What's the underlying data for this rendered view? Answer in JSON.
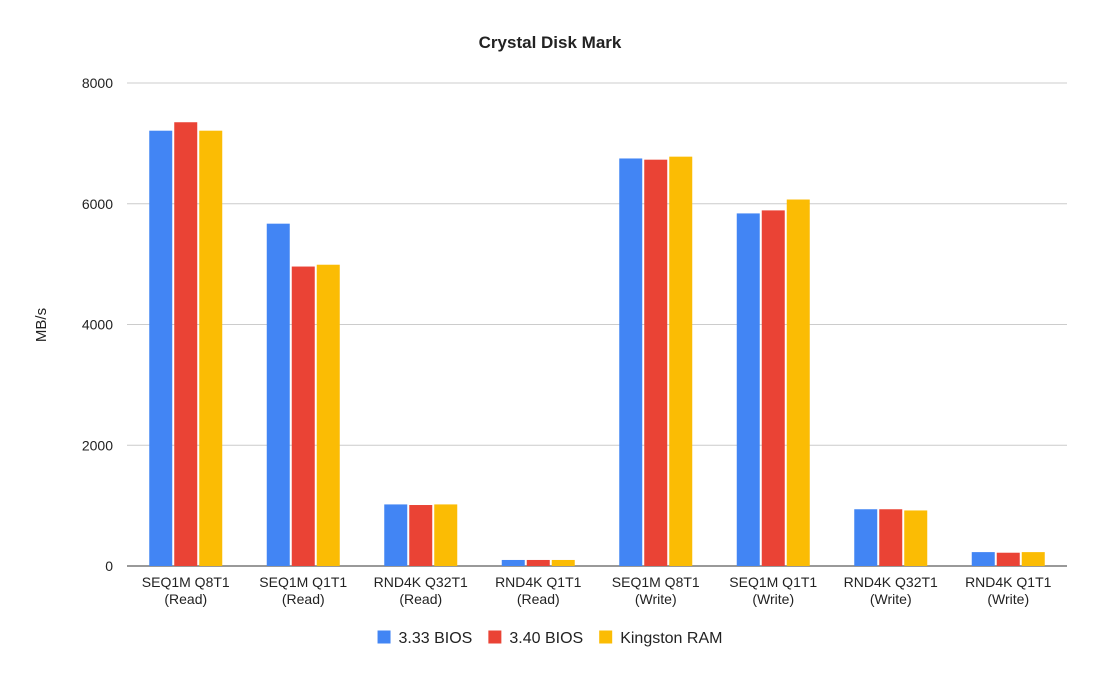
{
  "chart_data": {
    "type": "bar",
    "title": "Crystal Disk Mark",
    "xlabel": "",
    "ylabel": "MB/s",
    "ylim": [
      0,
      8000
    ],
    "yticks": [
      "0",
      "2000",
      "4000",
      "6000",
      "8000"
    ],
    "grid": true,
    "legend_position": "bottom",
    "categories": [
      [
        "SEQ1M Q8T1",
        "(Read)"
      ],
      [
        "SEQ1M Q1T1",
        "(Read)"
      ],
      [
        "RND4K Q32T1",
        "(Read)"
      ],
      [
        "RND4K Q1T1",
        "(Read)"
      ],
      [
        "SEQ1M Q8T1",
        "(Write)"
      ],
      [
        "SEQ1M Q1T1",
        "(Write)"
      ],
      [
        "RND4K Q32T1",
        "(Write)"
      ],
      [
        "RND4K Q1T1",
        "(Write)"
      ]
    ],
    "series": [
      {
        "name": "3.33 BIOS",
        "color": "#4285f4",
        "values": [
          7210,
          5670,
          1020,
          100,
          6750,
          5840,
          940,
          230
        ]
      },
      {
        "name": "3.40 BIOS",
        "color": "#ea4335",
        "values": [
          7350,
          4960,
          1010,
          100,
          6730,
          5890,
          940,
          220
        ]
      },
      {
        "name": "Kingston RAM",
        "color": "#fbbc04",
        "values": [
          7210,
          4990,
          1020,
          100,
          6780,
          6070,
          920,
          230
        ]
      }
    ]
  }
}
